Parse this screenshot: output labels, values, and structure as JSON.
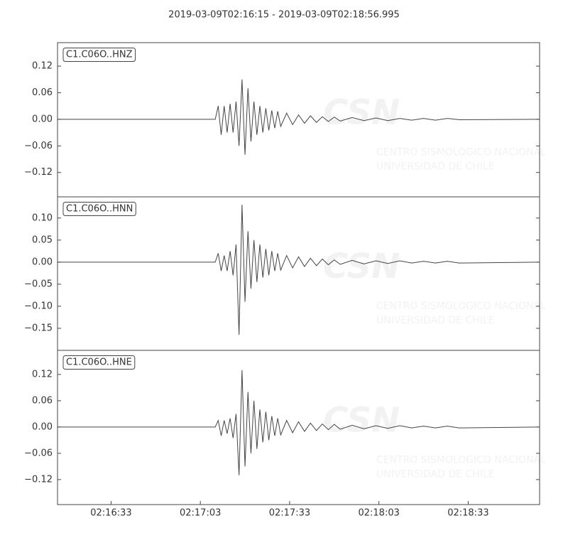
{
  "title": "2019-03-09T02:16:15  -  2019-03-09T02:18:56.995",
  "watermark": {
    "logo": "CSN",
    "line1": "CENTRO SISMOLOGICO NACIONAL",
    "line2": "UNIVERSIDAD DE CHILE"
  },
  "chart_data": [
    {
      "type": "line",
      "label": "C1.C06O..HNZ",
      "color": "#444444",
      "xlim": [
        "02:16:15",
        "02:18:56.995"
      ],
      "x": [
        "02:16:15",
        "02:17:08",
        "02:17:09",
        "02:17:10",
        "02:17:11",
        "02:17:12",
        "02:17:13",
        "02:17:14",
        "02:17:15",
        "02:17:16",
        "02:17:17",
        "02:17:18",
        "02:17:19",
        "02:17:20",
        "02:17:21",
        "02:17:22",
        "02:17:23",
        "02:17:24",
        "02:17:25",
        "02:17:26",
        "02:17:27",
        "02:17:28",
        "02:17:29",
        "02:17:30",
        "02:17:32",
        "02:17:34",
        "02:17:36",
        "02:17:38",
        "02:17:40",
        "02:17:42",
        "02:17:44",
        "02:17:46",
        "02:17:48",
        "02:17:50",
        "02:17:54",
        "02:17:58",
        "02:18:02",
        "02:18:06",
        "02:18:10",
        "02:18:14",
        "02:18:18",
        "02:18:22",
        "02:18:26",
        "02:18:30",
        "02:18:56.995"
      ],
      "values": [
        0,
        0,
        0.03,
        -0.035,
        0.03,
        -0.03,
        0.035,
        -0.03,
        0.04,
        -0.06,
        0.09,
        -0.08,
        0.07,
        -0.05,
        0.04,
        -0.035,
        0.03,
        -0.03,
        0.025,
        -0.025,
        0.02,
        -0.02,
        0.018,
        -0.016,
        0.014,
        -0.012,
        0.01,
        -0.009,
        0.008,
        -0.007,
        0.006,
        -0.005,
        0.005,
        -0.004,
        0.004,
        -0.003,
        0.003,
        -0.003,
        0.002,
        -0.002,
        0.002,
        -0.002,
        0.002,
        -0.001,
        0
      ],
      "ylim": [
        -0.175,
        0.173
      ],
      "yticks": [
        {
          "value": 0.12,
          "label": "0.12"
        },
        {
          "value": 0.06,
          "label": "0.06"
        },
        {
          "value": 0,
          "label": "0.00"
        },
        {
          "value": -0.06,
          "label": "−0.06"
        },
        {
          "value": -0.12,
          "label": "−0.12"
        }
      ]
    },
    {
      "type": "line",
      "label": "C1.C06O..HNN",
      "color": "#444444",
      "xlim": [
        "02:16:15",
        "02:18:56.995"
      ],
      "x": [
        "02:16:15",
        "02:17:08",
        "02:17:09",
        "02:17:10",
        "02:17:11",
        "02:17:12",
        "02:17:13",
        "02:17:14",
        "02:17:15",
        "02:17:16",
        "02:17:17",
        "02:17:18",
        "02:17:19",
        "02:17:20",
        "02:17:21",
        "02:17:22",
        "02:17:23",
        "02:17:24",
        "02:17:25",
        "02:17:26",
        "02:17:27",
        "02:17:28",
        "02:17:29",
        "02:17:30",
        "02:17:32",
        "02:17:34",
        "02:17:36",
        "02:17:38",
        "02:17:40",
        "02:17:42",
        "02:17:44",
        "02:17:46",
        "02:17:48",
        "02:17:50",
        "02:17:54",
        "02:17:58",
        "02:18:02",
        "02:18:06",
        "02:18:10",
        "02:18:14",
        "02:18:18",
        "02:18:22",
        "02:18:26",
        "02:18:30",
        "02:18:56.995"
      ],
      "values": [
        0,
        0,
        0.02,
        -0.02,
        0.015,
        -0.02,
        0.025,
        -0.03,
        0.04,
        -0.165,
        0.13,
        -0.09,
        0.07,
        -0.06,
        0.05,
        -0.045,
        0.04,
        -0.035,
        0.03,
        -0.03,
        0.025,
        -0.02,
        0.02,
        -0.018,
        0.015,
        -0.013,
        0.012,
        -0.01,
        0.009,
        -0.008,
        0.007,
        -0.006,
        0.005,
        -0.005,
        0.004,
        -0.004,
        0.003,
        -0.003,
        0.003,
        -0.002,
        0.002,
        -0.002,
        0.002,
        -0.002,
        0
      ],
      "ylim": [
        -0.2,
        0.148
      ],
      "yticks": [
        {
          "value": 0.1,
          "label": "0.10"
        },
        {
          "value": 0.05,
          "label": "0.05"
        },
        {
          "value": 0,
          "label": "0.00"
        },
        {
          "value": -0.05,
          "label": "−0.05"
        },
        {
          "value": -0.1,
          "label": "−0.10"
        },
        {
          "value": -0.15,
          "label": "−0.15"
        }
      ]
    },
    {
      "type": "line",
      "label": "C1.C06O..HNE",
      "color": "#444444",
      "xlim": [
        "02:16:15",
        "02:18:56.995"
      ],
      "x": [
        "02:16:15",
        "02:17:08",
        "02:17:09",
        "02:17:10",
        "02:17:11",
        "02:17:12",
        "02:17:13",
        "02:17:14",
        "02:17:15",
        "02:17:16",
        "02:17:17",
        "02:17:18",
        "02:17:19",
        "02:17:20",
        "02:17:21",
        "02:17:22",
        "02:17:23",
        "02:17:24",
        "02:17:25",
        "02:17:26",
        "02:17:27",
        "02:17:28",
        "02:17:29",
        "02:17:30",
        "02:17:32",
        "02:17:34",
        "02:17:36",
        "02:17:38",
        "02:17:40",
        "02:17:42",
        "02:17:44",
        "02:17:46",
        "02:17:48",
        "02:17:50",
        "02:17:54",
        "02:17:58",
        "02:18:02",
        "02:18:06",
        "02:18:10",
        "02:18:14",
        "02:18:18",
        "02:18:22",
        "02:18:26",
        "02:18:30",
        "02:18:56.995"
      ],
      "values": [
        0,
        0,
        0.015,
        -0.02,
        0.015,
        -0.015,
        0.02,
        -0.025,
        0.03,
        -0.11,
        0.13,
        -0.09,
        0.08,
        -0.06,
        0.06,
        -0.05,
        0.04,
        -0.035,
        0.035,
        -0.03,
        0.025,
        -0.02,
        0.02,
        -0.018,
        0.015,
        -0.013,
        0.012,
        -0.01,
        0.009,
        -0.008,
        0.007,
        -0.006,
        0.006,
        -0.005,
        0.004,
        -0.004,
        0.003,
        -0.003,
        0.003,
        -0.002,
        0.002,
        -0.002,
        0.002,
        -0.002,
        0
      ],
      "ylim": [
        -0.177,
        0.175
      ],
      "yticks": [
        {
          "value": 0.12,
          "label": "0.12"
        },
        {
          "value": 0.06,
          "label": "0.06"
        },
        {
          "value": 0,
          "label": "0.00"
        },
        {
          "value": -0.06,
          "label": "−0.06"
        },
        {
          "value": -0.12,
          "label": "−0.12"
        }
      ],
      "xticks": [
        "02:16:33",
        "02:17:03",
        "02:17:33",
        "02:18:03",
        "02:18:33"
      ]
    }
  ]
}
